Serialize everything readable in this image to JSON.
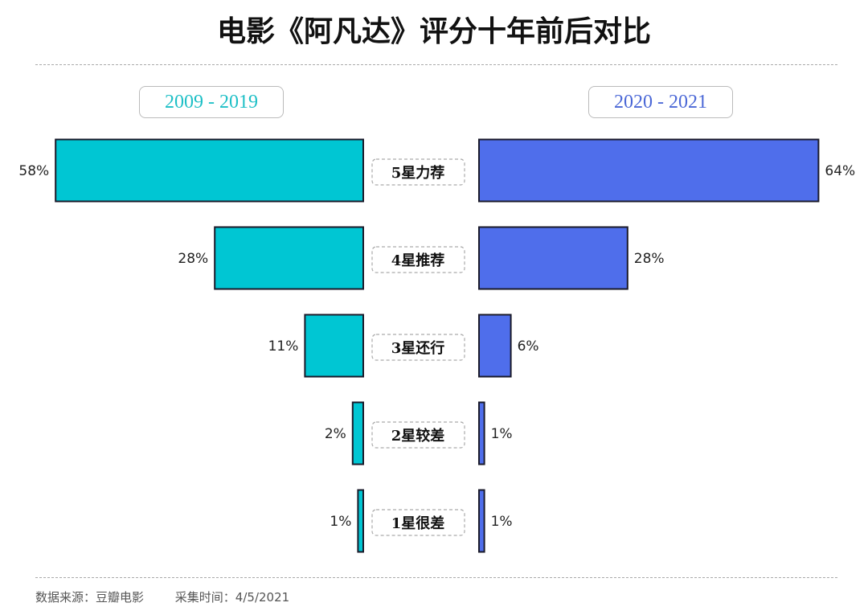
{
  "chart_data": {
    "type": "bar",
    "title": "电影《阿凡达》评分十年前后对比",
    "orientation": "horizontal-butterfly",
    "categories": [
      "5星力荐",
      "4星推荐",
      "3星还行",
      "2星较差",
      "1星很差"
    ],
    "series": [
      {
        "name": "2009 - 2019",
        "values": [
          58,
          28,
          11,
          2,
          1
        ],
        "color": "#00C6D3",
        "side": "left"
      },
      {
        "name": "2020 - 2021",
        "values": [
          64,
          28,
          6,
          1,
          1
        ],
        "color": "#4F6EEB",
        "side": "right"
      }
    ],
    "value_format": "percent",
    "grid": false
  },
  "footer": {
    "source": "数据来源：豆瓣电影",
    "time": "采集时间：4/5/2021"
  },
  "colors": {
    "left_label": "#1DBFC6",
    "right_label": "#4A67D6",
    "bar_border": "#1a1a2a"
  }
}
